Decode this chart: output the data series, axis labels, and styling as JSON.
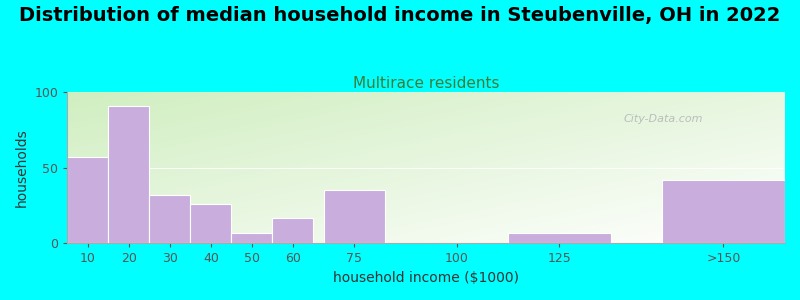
{
  "title": "Distribution of median household income in Steubenville, OH in 2022",
  "subtitle": "Multirace residents",
  "xlabel": "household income ($1000)",
  "ylabel": "households",
  "background_color": "#00FFFF",
  "bar_color": "#c9aedd",
  "categories": [
    "10",
    "20",
    "30",
    "40",
    "50",
    "60",
    "75",
    "100",
    "125",
    ">150"
  ],
  "bar_centers": [
    10,
    20,
    30,
    40,
    50,
    60,
    75,
    100,
    125,
    165
  ],
  "bar_widths": [
    10,
    10,
    10,
    10,
    10,
    10,
    15,
    25,
    25,
    30
  ],
  "values": [
    57,
    91,
    32,
    26,
    7,
    17,
    35,
    0,
    7,
    42
  ],
  "xlim": [
    5,
    180
  ],
  "ylim": [
    0,
    100
  ],
  "yticks": [
    0,
    50,
    100
  ],
  "xtick_positions": [
    10,
    20,
    30,
    40,
    50,
    60,
    75,
    100,
    125,
    165
  ],
  "xtick_labels": [
    "10",
    "20",
    "30",
    "40",
    "50",
    "60",
    "75",
    "100",
    "125",
    ">150"
  ],
  "watermark": "City-Data.com",
  "title_fontsize": 14,
  "subtitle_fontsize": 11,
  "subtitle_color": "#3a7d3a",
  "axis_label_fontsize": 10,
  "tick_fontsize": 9
}
